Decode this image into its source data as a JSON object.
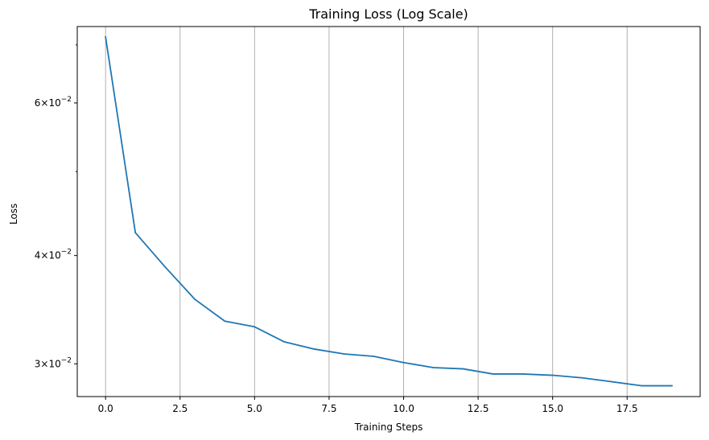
{
  "chart_data": {
    "type": "line",
    "title": "Training Loss (Log Scale)",
    "xlabel": "Training Steps",
    "ylabel": "Loss",
    "xlim": [
      -0.95,
      19.95
    ],
    "ylim": [
      0.0275,
      0.0735
    ],
    "yscale": "log",
    "grid": "x-axis only",
    "line_color": "#1f77b4",
    "x_ticks": [
      {
        "value": 0,
        "label": "0.0"
      },
      {
        "value": 2.5,
        "label": "2.5"
      },
      {
        "value": 5,
        "label": "5.0"
      },
      {
        "value": 7.5,
        "label": "7.5"
      },
      {
        "value": 10,
        "label": "10.0"
      },
      {
        "value": 12.5,
        "label": "12.5"
      },
      {
        "value": 15,
        "label": "15.0"
      },
      {
        "value": 17.5,
        "label": "17.5"
      }
    ],
    "y_major_ticks": [
      {
        "value": 0.03,
        "mantissa": "3",
        "exponent": "−2"
      },
      {
        "value": 0.04,
        "mantissa": "4",
        "exponent": "−2"
      },
      {
        "value": 0.06,
        "mantissa": "6",
        "exponent": "−2"
      }
    ],
    "y_minor_ticks": [
      0.05,
      0.07
    ],
    "series": [
      {
        "x": [
          0,
          1,
          2,
          3,
          4,
          5,
          6,
          7,
          8,
          9,
          10,
          11,
          12,
          13,
          14,
          15,
          16,
          17,
          18,
          19
        ],
        "values": [
          0.0715,
          0.0425,
          0.0388,
          0.0356,
          0.0336,
          0.0331,
          0.0318,
          0.0312,
          0.0308,
          0.0306,
          0.0301,
          0.0297,
          0.0296,
          0.0292,
          0.0292,
          0.0291,
          0.0289,
          0.0286,
          0.0283,
          0.0283
        ]
      }
    ]
  }
}
